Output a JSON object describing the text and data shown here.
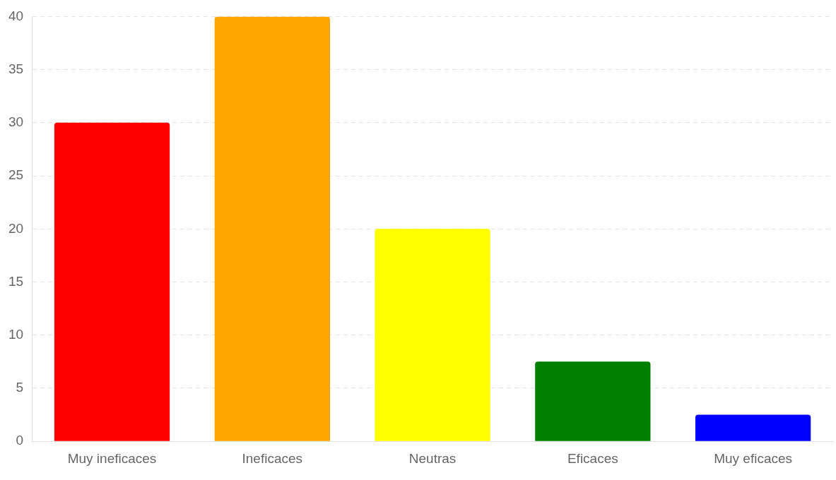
{
  "chart_data": {
    "type": "bar",
    "categories": [
      "Muy ineficaces",
      "Ineficaces",
      "Neutras",
      "Eficaces",
      "Muy eficaces"
    ],
    "values": [
      30,
      40,
      20,
      7.5,
      2.5
    ],
    "colors": [
      "#ff0000",
      "#ffa500",
      "#ffff00",
      "#008000",
      "#0000ff"
    ],
    "ylim": [
      0,
      40
    ],
    "yticks": [
      0,
      5,
      10,
      15,
      20,
      25,
      30,
      35,
      40
    ],
    "grid": "y",
    "legend": false
  }
}
